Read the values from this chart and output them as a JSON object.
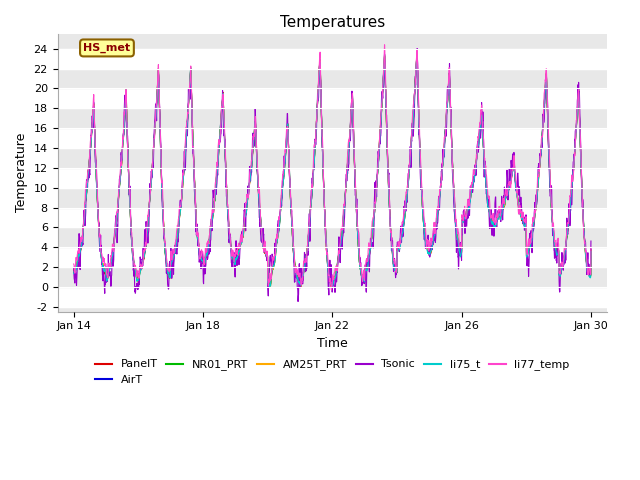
{
  "title": "Temperatures",
  "xlabel": "Time",
  "ylabel": "Temperature",
  "xlim_days": [
    13.5,
    30.5
  ],
  "ylim": [
    -2.5,
    25
  ],
  "yticks": [
    -2,
    0,
    2,
    4,
    6,
    8,
    10,
    12,
    14,
    16,
    18,
    20,
    22,
    24
  ],
  "xtick_positions": [
    14,
    18,
    22,
    26,
    30
  ],
  "xtick_labels": [
    "Jan 14",
    "Jan 18",
    "Jan 22",
    "Jan 26",
    "Jan 30"
  ],
  "annotation_text": "HS_met",
  "fig_bg_color": "#ffffff",
  "plot_bg_color": "#e8e8e8",
  "series": [
    {
      "name": "PanelT",
      "color": "#dd0000",
      "lw": 0.8
    },
    {
      "name": "AirT",
      "color": "#0000dd",
      "lw": 0.8
    },
    {
      "name": "NR01_PRT",
      "color": "#00bb00",
      "lw": 0.8
    },
    {
      "name": "AM25T_PRT",
      "color": "#ffaa00",
      "lw": 0.8
    },
    {
      "name": "Tsonic",
      "color": "#9900cc",
      "lw": 0.8
    },
    {
      "name": "li75_t",
      "color": "#00cccc",
      "lw": 0.8
    },
    {
      "name": "li77_temp",
      "color": "#ff44cc",
      "lw": 0.8
    }
  ],
  "n_points": 2016,
  "legend_ncol": 6
}
